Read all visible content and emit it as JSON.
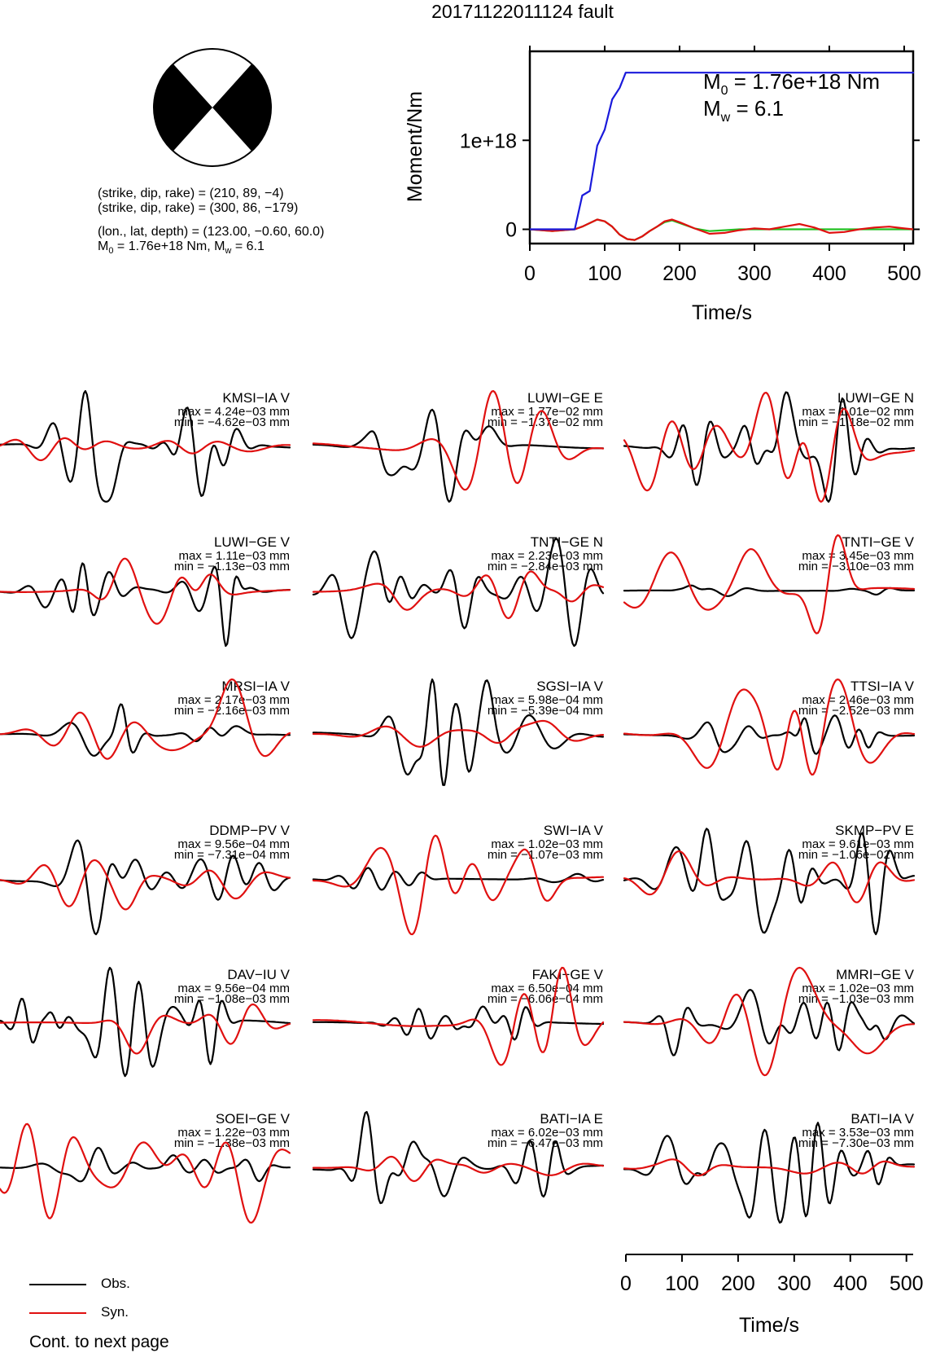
{
  "title": "20171122011124 fault",
  "beachball": {
    "lines": [
      "(strike, dip, rake) = (210, 89, −4)",
      "(strike, dip, rake) = (300, 86, −179)",
      "(lon., lat, depth) = (123.00, −0.60, 60.0)"
    ],
    "moment_line": {
      "m0": "M",
      "m0_sub": "0",
      "m0_val": " = 1.76e+18 Nm, M",
      "mw_sub": "w",
      "mw_val": " = 6.1"
    }
  },
  "stf": {
    "ylabel": "Moment/Nm",
    "xlabel": "Time/s",
    "ytick_labels": [
      "0",
      "1e+18"
    ],
    "xtick_labels": [
      "0",
      "100",
      "200",
      "300",
      "400",
      "500"
    ],
    "m0_label": "M",
    "m0_sub": "0",
    "m0_text": " = 1.76e+18 Nm",
    "mw_label": "M",
    "mw_sub": "w",
    "mw_text": " = 6.1",
    "colors": {
      "cumulative": "#1a1adb",
      "rate_a": "#e01010",
      "rate_b": "#22c022",
      "rate_c": "#b8860b"
    }
  },
  "panels": [
    {
      "name": "KMSI−IA V",
      "max": "max = 4.24e−03 mm",
      "min": "min = −4.62e−03 mm"
    },
    {
      "name": "LUWI−GE E",
      "max": "max = 1.77e−02 mm",
      "min": "min = −1.37e−02 mm"
    },
    {
      "name": "LUWI−GE N",
      "max": "max = 1.01e−02 mm",
      "min": "min = −1.18e−02 mm"
    },
    {
      "name": "LUWI−GE V",
      "max": "max = 1.11e−03 mm",
      "min": "min = −1.13e−03 mm"
    },
    {
      "name": "TNTI−GE N",
      "max": "max = 2.23e−03 mm",
      "min": "min = −2.84e−03 mm"
    },
    {
      "name": "TNTI−GE V",
      "max": "max = 3.45e−03 mm",
      "min": "min = −3.10e−03 mm"
    },
    {
      "name": "MRSI−IA V",
      "max": "max = 2.17e−03 mm",
      "min": "min = −2.16e−03 mm"
    },
    {
      "name": "SGSI−IA V",
      "max": "max = 5.98e−04 mm",
      "min": "min = −5.39e−04 mm"
    },
    {
      "name": "TTSI−IA V",
      "max": "max = 2.46e−03 mm",
      "min": "min = −2.52e−03 mm"
    },
    {
      "name": "DDMP−PV V",
      "max": "max = 9.56e−04 mm",
      "min": "min = −7.31e−04 mm"
    },
    {
      "name": "SWI−IA V",
      "max": "max = 1.02e−03 mm",
      "min": "min = −1.07e−03 mm"
    },
    {
      "name": "SKMP−PV E",
      "max": "max = 9.61e−03 mm",
      "min": "min = −1.06e−02 mm"
    },
    {
      "name": "DAV−IU V",
      "max": "max = 9.56e−04 mm",
      "min": "min = −1.08e−03 mm"
    },
    {
      "name": "FAKI−GE V",
      "max": "max = 6.50e−04 mm",
      "min": "min = −6.06e−04 mm"
    },
    {
      "name": "MMRI−GE V",
      "max": "max = 1.02e−03 mm",
      "min": "min = −1.03e−03 mm"
    },
    {
      "name": "SOEI−GE V",
      "max": "max = 1.22e−03 mm",
      "min": "min = −1.38e−03 mm"
    },
    {
      "name": "BATI−IA E",
      "max": "max = 6.02e−03 mm",
      "min": "min = −6.47e−03 mm"
    },
    {
      "name": "BATI−IA V",
      "max": "max = 3.53e−03 mm",
      "min": "min = −7.30e−03 mm"
    }
  ],
  "bottom_axis": {
    "xlabel": "Time/s",
    "xtick_labels": [
      "0",
      "100",
      "200",
      "300",
      "400",
      "500"
    ]
  },
  "legend": [
    {
      "label": "Obs.",
      "color": "#000000"
    },
    {
      "label": "Syn.",
      "color": "#e01010"
    }
  ],
  "footer": "Cont. to next page",
  "chart_data": [
    {
      "type": "line",
      "title": "",
      "xlabel": "Time/s",
      "ylabel": "Moment/Nm",
      "xlim": [
        0,
        512
      ],
      "ylim": [
        -1.6e+17,
        2e+18
      ],
      "series": [
        {
          "x": [
            0,
            60,
            70,
            80,
            90,
            100,
            110,
            120,
            128,
            140,
            200,
            300,
            400,
            512
          ],
          "values": [
            0,
            0,
            3.8e+17,
            4.3e+17,
            9.4e+17,
            1.12e+18,
            1.46e+18,
            1.59e+18,
            1.76e+18,
            1.76e+18,
            1.76e+18,
            1.76e+18,
            1.76e+18,
            1.76e+18
          ]
        },
        {
          "x": [
            0,
            30,
            60,
            70,
            80,
            90,
            100,
            110,
            120,
            130,
            140,
            150,
            160,
            170,
            180,
            190,
            200,
            220,
            240,
            260,
            280,
            300,
            320,
            340,
            360,
            380,
            400,
            420,
            440,
            460,
            480,
            500,
            512
          ],
          "values": [
            0,
            -2e+16,
            0,
            3e+16,
            7e+16,
            1.1e+17,
            9e+16,
            3e+16,
            -6e+16,
            -1.1e+17,
            -1.2e+17,
            -8e+16,
            -2e+16,
            3e+16,
            9e+16,
            1.1e+17,
            8e+16,
            1e+16,
            -5e+16,
            -4e+16,
            -1e+16,
            1e+16,
            0,
            3e+16,
            6e+16,
            2e+16,
            -4e+16,
            -3e+16,
            0,
            2e+16,
            3e+16,
            1e+16,
            0
          ]
        },
        {
          "x": [
            0,
            30,
            60,
            70,
            80,
            90,
            100,
            110,
            120,
            130,
            140,
            150,
            160,
            170,
            180,
            190,
            200,
            220,
            240,
            260,
            280,
            300,
            320,
            340,
            360,
            380,
            400,
            420,
            440,
            460,
            480,
            500,
            512
          ],
          "values": [
            0,
            -2e+16,
            0,
            3e+16,
            7e+16,
            1.1e+17,
            9e+16,
            3e+16,
            -6e+16,
            -1.1e+17,
            -1.2e+17,
            -8e+16,
            -2e+16,
            3e+16,
            8e+16,
            1e+17,
            7e+16,
            1e+16,
            -2e+16,
            -1e+16,
            0,
            0,
            0,
            0,
            0,
            0,
            0,
            0,
            0,
            0,
            0,
            0,
            0
          ]
        }
      ]
    }
  ]
}
